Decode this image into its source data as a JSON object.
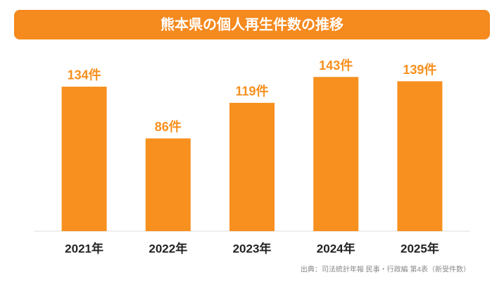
{
  "chart_data": {
    "type": "bar",
    "title": "熊本県の個人再生件数の推移",
    "categories": [
      "2021年",
      "2022年",
      "2023年",
      "2024年",
      "2025年"
    ],
    "values": [
      134,
      86,
      119,
      143,
      139
    ],
    "value_labels": [
      "134件",
      "86件",
      "119件",
      "143件",
      "139件"
    ],
    "color": "#f7901e",
    "source": "出典：司法統計年報 民事・行政編 第4表（新受件数）"
  }
}
